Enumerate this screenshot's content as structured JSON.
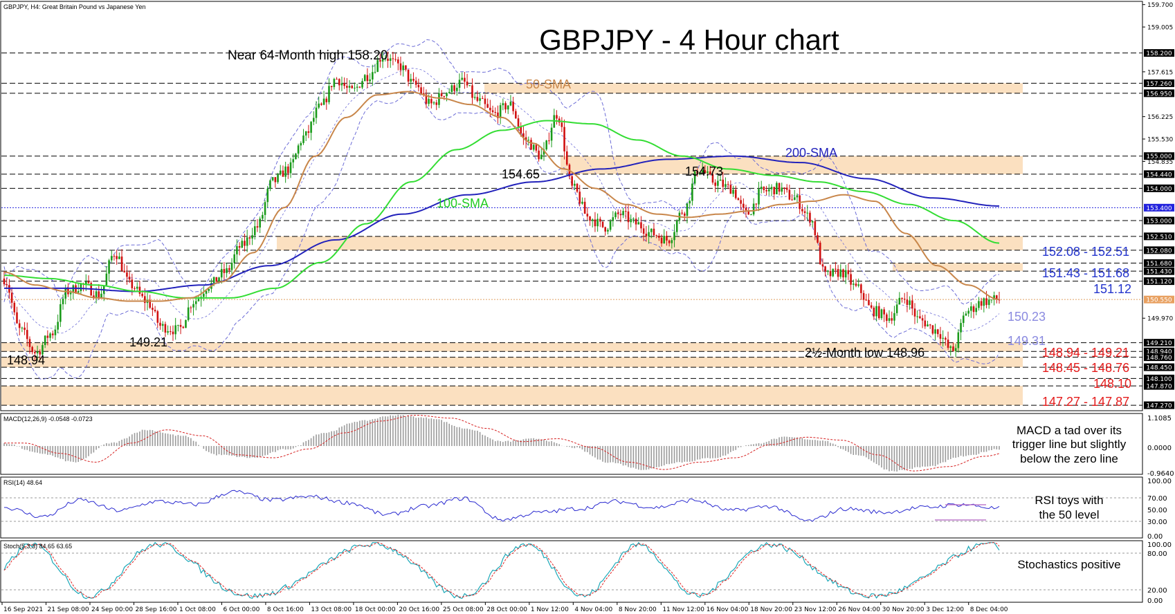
{
  "header": {
    "symbol_info": "GBPJPY, H4:  Great Britain Pound vs Japanese Yen",
    "title": "GBPJPY - 4 Hour chart"
  },
  "colors": {
    "bull": "#1a9a1a",
    "bear": "#d01010",
    "sma50": "#c8864a",
    "sma100": "#33dd33",
    "sma200": "#2222bb",
    "bollinger": "#6b6bd6",
    "zone": "#fbe0c0",
    "red_text": "#e41b1b",
    "blue_text": "#2233cc",
    "lavender_text": "#8a8ae0",
    "macd_signal": "#d62020",
    "rsi_line": "#2a2ad0",
    "stoch_main": "#1aa8b8",
    "stoch_signal": "#e02020"
  },
  "annotations": {
    "near_high": "Near 64-Month high 158.20",
    "sma50": "50-SMA",
    "sma100": "100-SMA",
    "sma200": "200-SMA",
    "p154_65": "154.65",
    "p154_73": "154.73",
    "p149_21": "149.21",
    "p148_94": "148.94",
    "low": "2½-Month low 148.96",
    "p150_23": "150.23",
    "p149_31": "149.31",
    "zone_152": "152.08 - 152.51",
    "zone_151": "151.43 - 151.68",
    "lvl_151_12": "151.12",
    "zone_14894": "148.94 - 149.21",
    "zone_14845": "148.45 - 148.76",
    "lvl_148_10": "148.10",
    "zone_14727": "147.27 - 147.87",
    "macd_note_1": "MACD a tad over its",
    "macd_note_2": "trigger line but slightly",
    "macd_note_3": "below the zero line",
    "rsi_note_1": "RSI toys with",
    "rsi_note_2": "the 50 level",
    "stoch_note": "Stochastics positive"
  },
  "price_axis_labels": [
    "159.700",
    "159.005",
    "158.200",
    "157.615",
    "157.260",
    "156.950",
    "156.225",
    "155.530",
    "155.000",
    "154.835",
    "154.440",
    "154.000",
    "153.400",
    "153.000",
    "152.510",
    "152.080",
    "151.680",
    "151.430",
    "151.120",
    "150.550",
    "149.970",
    "149.210",
    "148.940",
    "148.760",
    "148.450",
    "148.100",
    "147.870",
    "147.270"
  ],
  "price_axis_boxed": [
    "158.200",
    "157.260",
    "156.950",
    "155.000",
    "154.440",
    "154.000",
    "153.400",
    "153.000",
    "152.510",
    "152.080",
    "151.680",
    "151.430",
    "151.120",
    "150.550",
    "149.210",
    "148.940",
    "148.760",
    "148.450",
    "148.100",
    "147.870",
    "147.270"
  ],
  "macd": {
    "label": "MACD(12,26,9) -0.0548 -0.0723",
    "axis": [
      "1.1085",
      "0.0000",
      "-0.9640"
    ]
  },
  "rsi": {
    "label": "RSI(14) 48.64",
    "axis": [
      "100.00",
      "70.00",
      "50.00",
      "30.00",
      "0.00"
    ]
  },
  "stoch": {
    "label": "Stoch(5,3,3) 84.65 63.65",
    "axis": [
      "100.00",
      "80.00",
      "20.00",
      "0.00"
    ]
  },
  "x_labels": [
    "16 Sep 2021",
    "21 Sep 08:00",
    "24 Sep 00:00",
    "28 Sep 16:00",
    "1 Oct 08:00",
    "6 Oct 00:00",
    "8 Oct 16:00",
    "13 Oct 08:00",
    "18 Oct 00:00",
    "20 Oct 16:00",
    "25 Oct 08:00",
    "28 Oct 00:00",
    "1 Nov 12:00",
    "4 Nov 04:00",
    "8 Nov 20:00",
    "11 Nov 12:00",
    "16 Nov 04:00",
    "18 Nov 20:00",
    "23 Nov 12:00",
    "26 Nov 04:00",
    "30 Nov 20:00",
    "3 Dec 12:00",
    "8 Dec 04:00"
  ],
  "chart_data": {
    "type": "candlestick",
    "title": "GBPJPY - 4 Hour chart",
    "y_range": [
      147.1,
      159.8
    ],
    "price_waypoints": [
      151.2,
      149.6,
      148.9,
      149.5,
      150.8,
      151.0,
      150.7,
      152.0,
      151.0,
      150.5,
      149.7,
      149.6,
      150.5,
      151.0,
      151.4,
      152.2,
      152.8,
      154.2,
      154.6,
      155.6,
      156.5,
      157.4,
      157.0,
      157.5,
      158.1,
      157.8,
      157.2,
      156.6,
      157.0,
      157.3,
      156.7,
      156.3,
      156.6,
      155.5,
      155.0,
      156.3,
      154.0,
      153.1,
      152.8,
      153.2,
      152.9,
      152.6,
      152.4,
      153.3,
      154.6,
      154.2,
      154.0,
      153.2,
      153.9,
      154.0,
      153.7,
      153.1,
      151.3,
      151.4,
      150.9,
      150.2,
      150.0,
      150.6,
      149.9,
      149.6,
      148.96,
      150.2,
      150.5,
      150.55
    ],
    "sma50_waypoints": [
      151.4,
      151.0,
      150.8,
      150.6,
      150.5,
      150.5,
      150.6,
      151.1,
      152.0,
      153.4,
      155.0,
      156.2,
      156.9,
      157.0,
      156.8,
      156.6,
      156.2,
      155.4,
      154.6,
      154.0,
      153.5,
      153.2,
      153.1,
      153.2,
      153.3,
      153.5,
      153.6,
      153.8,
      153.6,
      152.6,
      151.6,
      151.0,
      150.55
    ],
    "sma100_waypoints": [
      151.3,
      151.2,
      151.0,
      150.8,
      150.6,
      150.6,
      150.9,
      151.7,
      152.9,
      154.2,
      155.2,
      155.8,
      156.1,
      156.0,
      155.5,
      155.0,
      154.6,
      154.4,
      154.2,
      153.9,
      153.5,
      153.0,
      152.3
    ],
    "sma200_waypoints": [
      150.9,
      150.9,
      150.8,
      151.0,
      151.6,
      152.4,
      153.2,
      153.8,
      154.2,
      154.6,
      154.9,
      155.0,
      154.8,
      154.3,
      153.7,
      153.45
    ],
    "support_resistance": [
      158.2,
      157.26,
      156.95,
      155.0,
      154.44,
      154.0,
      153.4,
      153.0,
      152.51,
      152.08,
      151.68,
      151.43,
      151.12,
      150.55,
      149.21,
      148.94,
      148.76,
      148.45,
      148.1,
      147.87,
      147.27
    ],
    "zones": [
      [
        156.95,
        157.26
      ],
      [
        154.44,
        155.0
      ],
      [
        152.08,
        152.51
      ],
      [
        151.43,
        151.68
      ],
      [
        148.94,
        149.21
      ],
      [
        148.45,
        148.76
      ],
      [
        147.27,
        147.87
      ]
    ],
    "macd_range": [
      -0.964,
      1.1085
    ],
    "macd_waypoints": [
      0.1,
      -0.25,
      -0.55,
      0.1,
      0.55,
      0.35,
      -0.3,
      -0.4,
      -0.1,
      0.45,
      0.85,
      1.05,
      0.95,
      0.6,
      0.15,
      0.25,
      -0.05,
      -0.55,
      -0.8,
      -0.55,
      -0.4,
      0.05,
      0.3,
      0.2,
      -0.3,
      -0.85,
      -0.7,
      -0.35,
      -0.1
    ],
    "rsi_range": [
      0,
      100
    ],
    "rsi_waypoints": [
      50,
      35,
      62,
      45,
      60,
      55,
      76,
      62,
      68,
      58,
      38,
      52,
      65,
      30,
      42,
      48,
      60,
      50,
      62,
      45,
      52,
      28,
      48,
      42,
      50,
      55,
      48.64
    ],
    "stoch_range": [
      0,
      100
    ],
    "stoch_waypoints": [
      50,
      15,
      85,
      20,
      70,
      90,
      30,
      80,
      20,
      85,
      95,
      40,
      75,
      15,
      60,
      90,
      25,
      80,
      20,
      70,
      90,
      30,
      85,
      15,
      60,
      95,
      20,
      84.65
    ],
    "axis_note": "y axis price axis in JPY"
  }
}
